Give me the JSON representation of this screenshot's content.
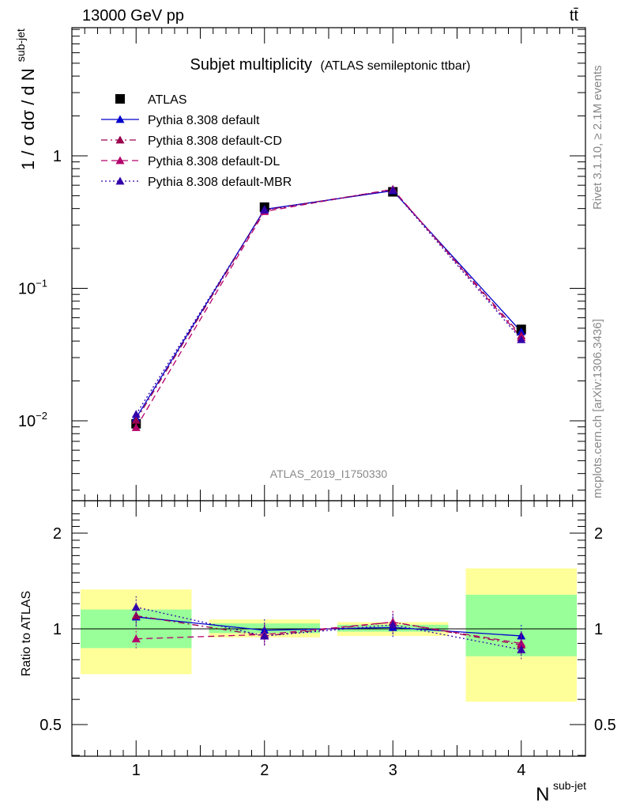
{
  "header": {
    "energy": "13000 GeV pp",
    "process": "tt̄"
  },
  "side": {
    "rivet": "Rivet 3.1.10, ≥ 2.1M events",
    "mcplots": "mcplots.cern.ch [arXiv:1306.3436]"
  },
  "chart_data": [
    {
      "type": "line",
      "title": "Subjet multiplicity",
      "subtitle": "(ATLAS semileptonic ttbar)",
      "ylabel_base": "1 / σ dσ / d N",
      "ylabel_sup": "sub-jet",
      "watermark": "ATLAS_2019_I1750330",
      "yscale": "log",
      "xlim": [
        0.5,
        4.5
      ],
      "ylim": [
        0.0025,
        6
      ],
      "ytick_labels": {
        "1": "1",
        "0.1": "10",
        "0.01": "10"
      },
      "ytick_exps": {
        "0.1": "−1",
        "0.01": "−2"
      },
      "x": [
        1,
        2,
        3,
        4
      ],
      "series": [
        {
          "name": "ATLAS",
          "color": "#000000",
          "marker": "square",
          "values": [
            0.0095,
            0.41,
            0.535,
            0.049
          ]
        },
        {
          "name": "Pythia 8.308 default",
          "color": "#0000cc",
          "marker": "triangle",
          "line": "solid",
          "values": [
            0.0105,
            0.395,
            0.545,
            0.047
          ]
        },
        {
          "name": "Pythia 8.308 default-CD",
          "color": "#99004d",
          "marker": "triangle",
          "line": "dashdot",
          "values": [
            0.0101,
            0.39,
            0.555,
            0.044
          ]
        },
        {
          "name": "Pythia 8.308 default-DL",
          "color": "#b3006b",
          "marker": "triangle",
          "line": "dashed",
          "values": [
            0.0089,
            0.38,
            0.56,
            0.0425
          ]
        },
        {
          "name": "Pythia 8.308 default-MBR",
          "color": "#3300aa",
          "marker": "triangle",
          "line": "dotted",
          "values": [
            0.0112,
            0.39,
            0.55,
            0.041
          ]
        }
      ]
    },
    {
      "type": "line",
      "ylabel": "Ratio to ATLAS",
      "xlabel_base": "N",
      "xlabel_sup": "sub-jet",
      "xlim": [
        0.5,
        4.5
      ],
      "ylim": [
        0.4,
        2.3
      ],
      "ytick_labels": [
        "0.5",
        "1",
        "2"
      ],
      "ytick_values": [
        0.5,
        1,
        2
      ],
      "xtick_labels": [
        "1",
        "2",
        "3",
        "4"
      ],
      "bands": [
        {
          "x0": 0.5,
          "x1": 1.5,
          "green": [
            0.87,
            1.15
          ],
          "yellow": [
            0.72,
            1.33
          ]
        },
        {
          "x0": 1.5,
          "x1": 2.5,
          "green": [
            0.97,
            1.04
          ],
          "yellow": [
            0.94,
            1.07
          ]
        },
        {
          "x0": 2.5,
          "x1": 3.5,
          "green": [
            0.98,
            1.03
          ],
          "yellow": [
            0.95,
            1.05
          ]
        },
        {
          "x0": 3.5,
          "x1": 4.5,
          "green": [
            0.82,
            1.28
          ],
          "yellow": [
            0.59,
            1.55
          ]
        }
      ],
      "x": [
        1,
        2,
        3,
        4
      ],
      "series": [
        {
          "name": "Pythia 8.308 default",
          "color": "#0000cc",
          "line": "solid",
          "values": [
            1.09,
            0.99,
            1.01,
            0.95
          ]
        },
        {
          "name": "Pythia 8.308 default-CD",
          "color": "#99004d",
          "line": "dashdot",
          "values": [
            1.1,
            0.95,
            1.05,
            0.89
          ]
        },
        {
          "name": "Pythia 8.308 default-DL",
          "color": "#b3006b",
          "line": "dashed",
          "values": [
            0.93,
            0.96,
            1.05,
            0.9
          ]
        },
        {
          "name": "Pythia 8.308 default-MBR",
          "color": "#3300aa",
          "line": "dotted",
          "values": [
            1.17,
            0.95,
            1.03,
            0.86
          ]
        }
      ]
    }
  ]
}
